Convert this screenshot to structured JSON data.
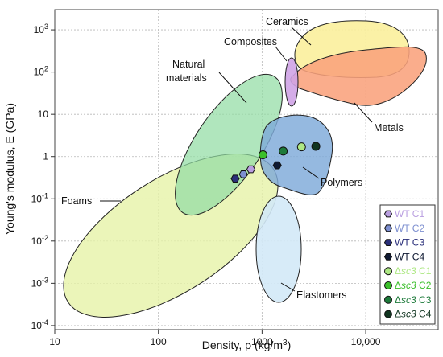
{
  "chart_data": {
    "type": "scatter",
    "xlabel": "Density, ρ (kg/m³)",
    "ylabel": "Young's modulus, E (GPa)",
    "x_scale": "log",
    "y_scale": "log",
    "xlim": [
      10,
      50000
    ],
    "ylim": [
      8e-05,
      3000
    ],
    "grid": true,
    "legend_position": "lower-right",
    "x_ticks": [
      {
        "value": 10,
        "label": "10"
      },
      {
        "value": 100,
        "label": "100"
      },
      {
        "value": 1000,
        "label": "1000"
      },
      {
        "value": 10000,
        "label": "10,000"
      }
    ],
    "y_ticks": [
      {
        "value": 0.0001,
        "base": "10",
        "exp": "-4"
      },
      {
        "value": 0.001,
        "base": "10",
        "exp": "-3"
      },
      {
        "value": 0.01,
        "base": "10",
        "exp": "-2"
      },
      {
        "value": 0.1,
        "base": "10",
        "exp": "-1"
      },
      {
        "value": 1,
        "base": "1",
        "exp": ""
      },
      {
        "value": 10,
        "base": "10",
        "exp": ""
      },
      {
        "value": 100,
        "base": "10",
        "exp": "2"
      },
      {
        "value": 1000,
        "base": "10",
        "exp": "3"
      }
    ],
    "regions": [
      {
        "label": "Foams",
        "color": "#e6f2a8"
      },
      {
        "label": "Natural materials",
        "color": "#92dda4"
      },
      {
        "label": "Polymers",
        "color": "#7ea9d9"
      },
      {
        "label": "Elastomers",
        "color": "#d3e9f7"
      },
      {
        "label": "Composites",
        "color": "#cfa3e5"
      },
      {
        "label": "Ceramics",
        "color": "#fbf09c"
      },
      {
        "label": "Metals",
        "color": "#f9a27c"
      }
    ],
    "series": [
      {
        "name": "WT C1",
        "marker": "hexagon",
        "color": "#b99ee0",
        "points": [
          {
            "x": 780,
            "y": 0.5
          }
        ]
      },
      {
        "name": "WT C2",
        "marker": "hexagon",
        "color": "#7d8fd0",
        "points": [
          {
            "x": 660,
            "y": 0.38
          }
        ]
      },
      {
        "name": "WT C3",
        "marker": "hexagon",
        "color": "#2a2f7a",
        "points": [
          {
            "x": 550,
            "y": 0.3
          }
        ]
      },
      {
        "name": "WT C4",
        "marker": "hexagon",
        "color": "#101a33",
        "points": [
          {
            "x": 1400,
            "y": 0.62
          }
        ]
      },
      {
        "name": "Δsc3 C1",
        "marker": "circle",
        "color": "#aee884",
        "points": [
          {
            "x": 2400,
            "y": 1.7
          }
        ]
      },
      {
        "name": "Δsc3 C2",
        "marker": "circle",
        "color": "#3bbf2b",
        "points": [
          {
            "x": 1020,
            "y": 1.1
          }
        ]
      },
      {
        "name": "Δsc3 C3",
        "marker": "circle",
        "color": "#1d7a3a",
        "points": [
          {
            "x": 1600,
            "y": 1.35
          }
        ]
      },
      {
        "name": "Δsc3 C4",
        "marker": "circle",
        "color": "#103520",
        "points": [
          {
            "x": 3300,
            "y": 1.75
          }
        ]
      }
    ]
  }
}
